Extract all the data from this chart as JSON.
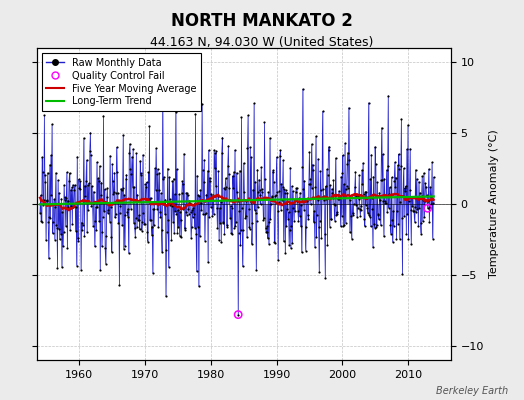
{
  "title": "NORTH MANKATO 2",
  "subtitle": "44.163 N, 94.030 W (United States)",
  "ylabel": "Temperature Anomaly (°C)",
  "watermark": "Berkeley Earth",
  "xlim": [
    1953.5,
    2016.5
  ],
  "ylim": [
    -11,
    11
  ],
  "yticks": [
    -10,
    -5,
    0,
    5,
    10
  ],
  "xticks": [
    1960,
    1970,
    1980,
    1990,
    2000,
    2010
  ],
  "background_color": "#ebebeb",
  "plot_background": "#ffffff",
  "line_color": "#2222cc",
  "fill_color": "#8888dd",
  "ma_color": "#cc0000",
  "trend_color": "#00bb00",
  "qc_color": "#ff00ff",
  "title_fontsize": 12,
  "subtitle_fontsize": 9,
  "start_year": 1954,
  "end_year": 2013,
  "months_per_year": 12,
  "seed": 12345
}
